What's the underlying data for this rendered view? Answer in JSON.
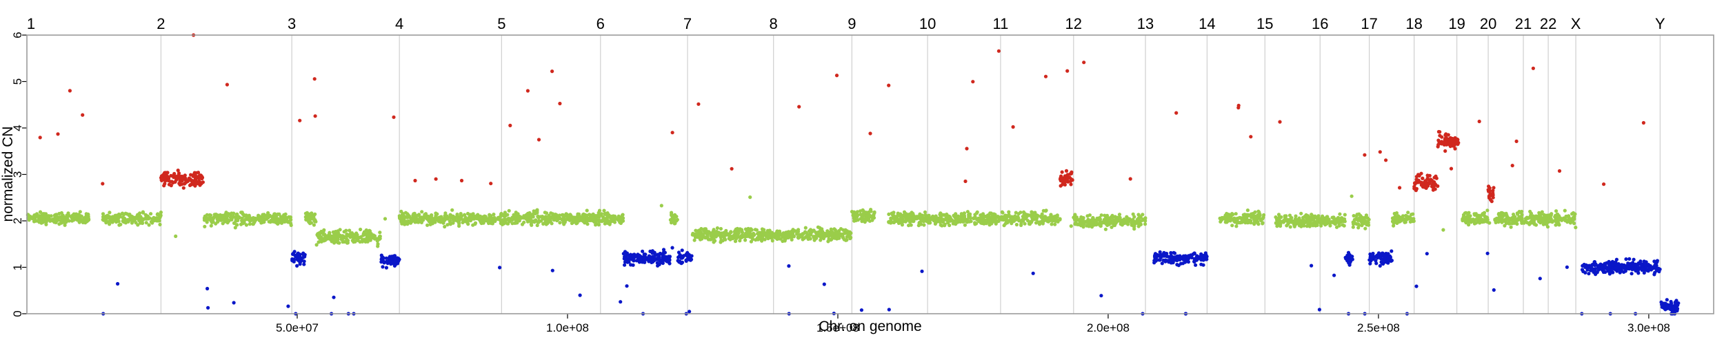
{
  "chart_data": {
    "type": "scatter",
    "title": "",
    "xlabel": "Chr. on genome",
    "ylabel": "normalized CN",
    "xlim": [
      0,
      312000000
    ],
    "ylim": [
      0,
      6
    ],
    "grid": false,
    "x_ticks": [
      {
        "value": 50000000,
        "label": "5.0e+07"
      },
      {
        "value": 100000000,
        "label": "1.0e+08"
      },
      {
        "value": 150000000,
        "label": "1.5e+08"
      },
      {
        "value": 200000000,
        "label": "2.0e+08"
      },
      {
        "value": 250000000,
        "label": "2.5e+08"
      },
      {
        "value": 300000000,
        "label": "3.0e+08"
      }
    ],
    "y_ticks": [
      0,
      1,
      2,
      3,
      4,
      5,
      6
    ],
    "chromosomes": [
      {
        "name": "1",
        "start": 0
      },
      {
        "name": "2",
        "start": 24800000
      },
      {
        "name": "3",
        "start": 49000000
      },
      {
        "name": "4",
        "start": 68900000
      },
      {
        "name": "5",
        "start": 87800000
      },
      {
        "name": "6",
        "start": 106100000
      },
      {
        "name": "7",
        "start": 122200000
      },
      {
        "name": "8",
        "start": 138100000
      },
      {
        "name": "9",
        "start": 152600000
      },
      {
        "name": "10",
        "start": 166600000
      },
      {
        "name": "11",
        "start": 180100000
      },
      {
        "name": "12",
        "start": 193600000
      },
      {
        "name": "13",
        "start": 206900000
      },
      {
        "name": "14",
        "start": 218300000
      },
      {
        "name": "15",
        "start": 229000000
      },
      {
        "name": "16",
        "start": 239200000
      },
      {
        "name": "17",
        "start": 248300000
      },
      {
        "name": "18",
        "start": 256600000
      },
      {
        "name": "19",
        "start": 264500000
      },
      {
        "name": "20",
        "start": 270300000
      },
      {
        "name": "21",
        "start": 276800000
      },
      {
        "name": "22",
        "start": 281400000
      },
      {
        "name": "X",
        "start": 286500000
      },
      {
        "name": "Y",
        "start": 302100000
      }
    ],
    "colors": {
      "gain": "#d0281e",
      "neutral": "#9acd4a",
      "loss": "#0a17c8"
    },
    "segments": [
      {
        "start": 0,
        "end": 11500000,
        "cn": 2.05,
        "state": "neutral"
      },
      {
        "start": 14000000,
        "end": 24800000,
        "cn": 2.05,
        "state": "neutral"
      },
      {
        "start": 24800000,
        "end": 32600000,
        "cn": 2.9,
        "state": "gain"
      },
      {
        "start": 32600000,
        "end": 49000000,
        "cn": 2.05,
        "state": "neutral"
      },
      {
        "start": 49000000,
        "end": 51500000,
        "cn": 1.2,
        "state": "loss"
      },
      {
        "start": 51500000,
        "end": 53500000,
        "cn": 2.05,
        "state": "neutral"
      },
      {
        "start": 53500000,
        "end": 65500000,
        "cn": 1.65,
        "state": "neutral"
      },
      {
        "start": 65500000,
        "end": 68900000,
        "cn": 1.15,
        "state": "loss"
      },
      {
        "start": 68900000,
        "end": 110300000,
        "cn": 2.05,
        "state": "neutral"
      },
      {
        "start": 110300000,
        "end": 119000000,
        "cn": 1.2,
        "state": "loss"
      },
      {
        "start": 119000000,
        "end": 120400000,
        "cn": 2.05,
        "state": "neutral"
      },
      {
        "start": 120400000,
        "end": 123000000,
        "cn": 1.2,
        "state": "loss"
      },
      {
        "start": 123000000,
        "end": 152600000,
        "cn": 1.7,
        "state": "neutral"
      },
      {
        "start": 152600000,
        "end": 156800000,
        "cn": 2.1,
        "state": "neutral"
      },
      {
        "start": 159200000,
        "end": 191100000,
        "cn": 2.05,
        "state": "neutral"
      },
      {
        "start": 191100000,
        "end": 193600000,
        "cn": 2.9,
        "state": "gain"
      },
      {
        "start": 193600000,
        "end": 206900000,
        "cn": 2.0,
        "state": "neutral"
      },
      {
        "start": 208500000,
        "end": 218300000,
        "cn": 1.2,
        "state": "loss"
      },
      {
        "start": 220600000,
        "end": 229000000,
        "cn": 2.05,
        "state": "neutral"
      },
      {
        "start": 231000000,
        "end": 243800000,
        "cn": 2.0,
        "state": "neutral"
      },
      {
        "start": 243800000,
        "end": 245300000,
        "cn": 1.2,
        "state": "loss"
      },
      {
        "start": 245300000,
        "end": 248300000,
        "cn": 2.0,
        "state": "neutral"
      },
      {
        "start": 248300000,
        "end": 252500000,
        "cn": 1.2,
        "state": "loss"
      },
      {
        "start": 252500000,
        "end": 256600000,
        "cn": 2.05,
        "state": "neutral"
      },
      {
        "start": 256600000,
        "end": 261000000,
        "cn": 2.8,
        "state": "gain"
      },
      {
        "start": 261000000,
        "end": 264800000,
        "cn": 3.7,
        "state": "gain"
      },
      {
        "start": 265500000,
        "end": 270300000,
        "cn": 2.05,
        "state": "neutral"
      },
      {
        "start": 270300000,
        "end": 271500000,
        "cn": 2.6,
        "state": "gain"
      },
      {
        "start": 271500000,
        "end": 276800000,
        "cn": 2.05,
        "state": "neutral"
      },
      {
        "start": 276800000,
        "end": 281400000,
        "cn": 2.05,
        "state": "neutral"
      },
      {
        "start": 281400000,
        "end": 286500000,
        "cn": 2.05,
        "state": "neutral"
      },
      {
        "start": 287600000,
        "end": 302100000,
        "cn": 1.0,
        "state": "loss"
      },
      {
        "start": 302300000,
        "end": 305500000,
        "cn": 0.15,
        "state": "loss"
      }
    ]
  }
}
